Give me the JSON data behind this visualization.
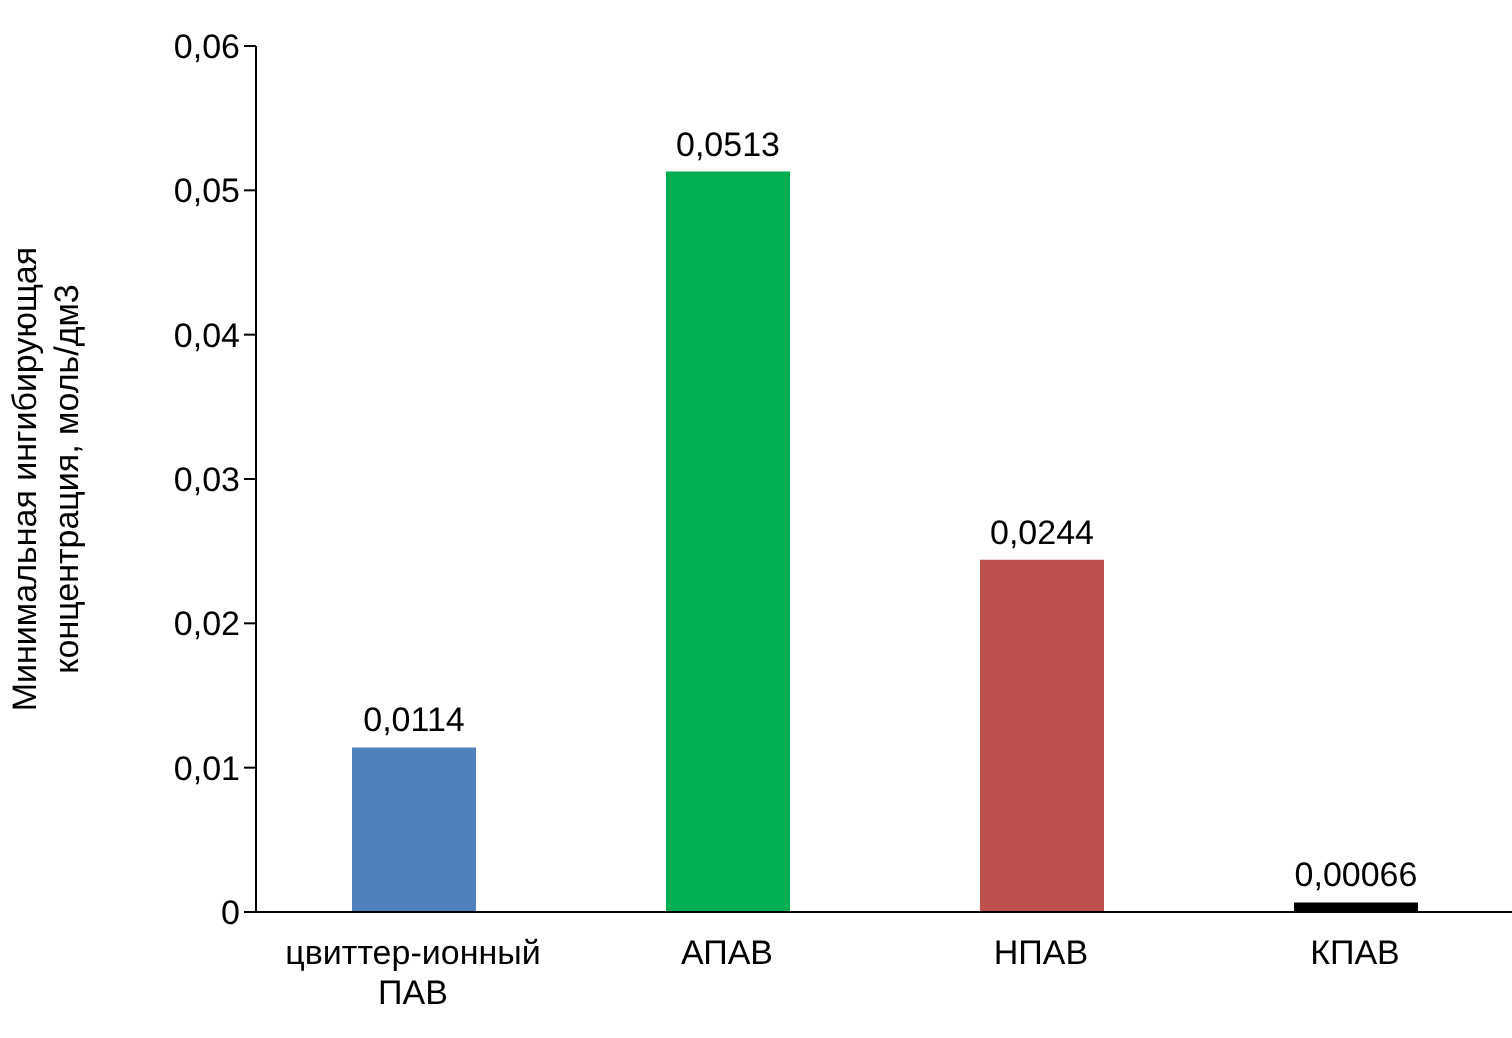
{
  "chart_data": {
    "type": "bar",
    "ylabel": "Минимальная ингибирующая\nконцентрация, моль/дм3",
    "categories": [
      "цвиттер-ионный ПАВ",
      "АПАВ",
      "НПАВ",
      "КПАВ"
    ],
    "values": [
      0.0114,
      0.0513,
      0.0244,
      0.00066
    ],
    "colors": [
      "#4f81bd",
      "#00b050",
      "#c0504d",
      "#000000"
    ],
    "value_labels": [
      "0,0114",
      "0,0513",
      "0,0244",
      "0,00066"
    ],
    "ylim": [
      0,
      0.06
    ],
    "yticks": [
      0,
      {
        "value": 0.01,
        "label": "0,01"
      },
      {
        "value": 0.02,
        "label": "0,02"
      },
      {
        "value": 0.03,
        "label": "0,03"
      },
      {
        "value": 0.04,
        "label": "0,04"
      },
      {
        "value": 0.05,
        "label": "0,05"
      },
      {
        "value": 0.06,
        "label": "0,06"
      }
    ],
    "grid": false,
    "legend": false
  }
}
